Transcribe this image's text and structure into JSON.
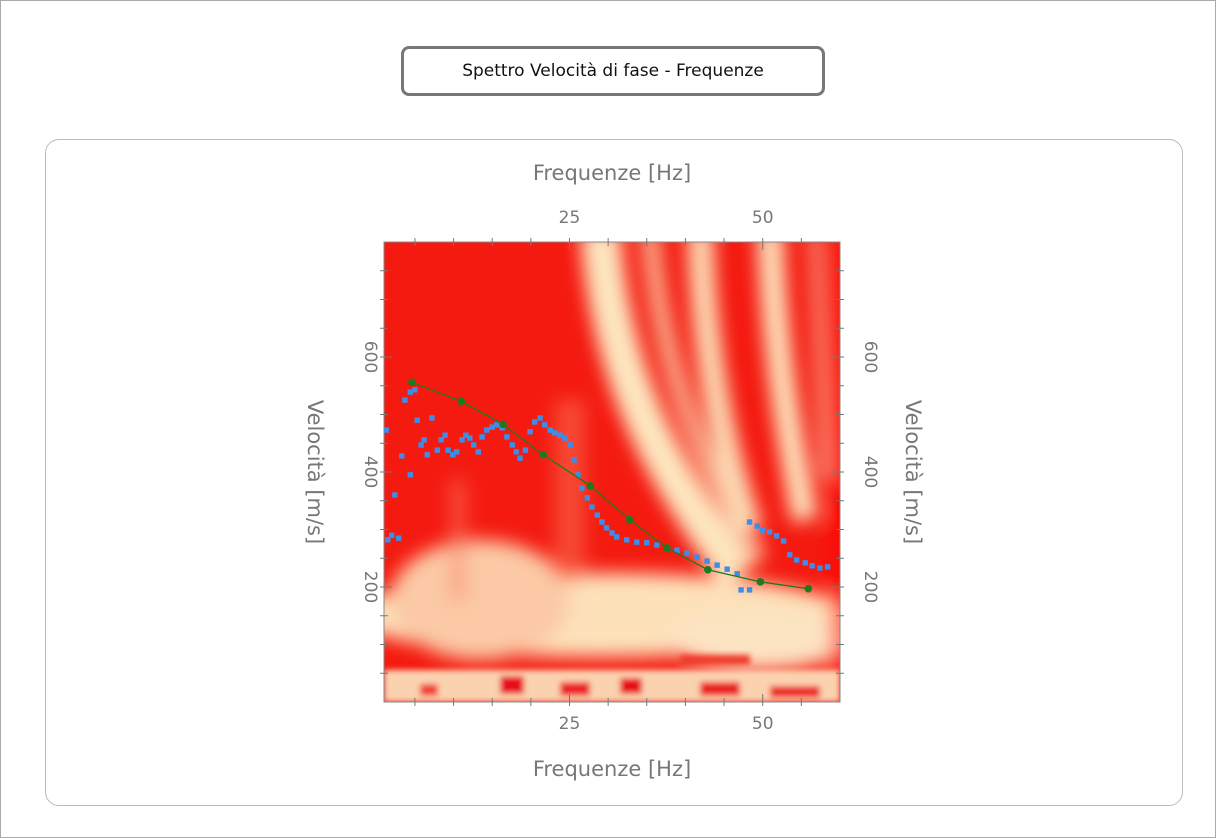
{
  "button": {
    "label": "Spettro Velocità di fase - Frequenze"
  },
  "chart_data": {
    "type": "scatter",
    "xlabel": "Frequenze [Hz]",
    "ylabel": "Velocità [m/s]",
    "xlim": [
      1,
      60
    ],
    "ylim": [
      0,
      800
    ],
    "xticks": [
      25,
      50
    ],
    "yticks": [
      200,
      400,
      600
    ],
    "xminorticks": [
      5,
      10,
      15,
      20,
      30,
      35,
      40,
      45,
      55
    ],
    "yminorticks": [
      50,
      100,
      150,
      250,
      300,
      350,
      450,
      500,
      550,
      650,
      700,
      750
    ],
    "series": [
      {
        "color": "#3d8ee8",
        "marker": "square",
        "x": [
          1.3,
          1.5,
          2,
          2.9,
          2.4,
          3.3,
          3.7,
          4.4,
          5,
          4.4,
          5.3,
          5.8,
          6.2,
          6.6,
          7.2,
          7.9,
          8.4,
          8.9,
          9.3,
          9.9,
          10.4,
          11.1,
          11.6,
          12.1,
          12.6,
          13.2,
          13.7,
          14.3,
          15,
          15.6,
          16.3,
          16.9,
          17.6,
          18.1,
          18.6,
          19.3,
          19.9,
          20.5,
          21.2,
          21.8,
          22.5,
          23.1,
          23.8,
          24.4,
          25.1,
          25.6,
          26.1,
          26.6,
          27.3,
          27.9,
          28.6,
          29.2,
          29.8,
          30.5,
          31.1,
          32.4,
          33.7,
          35,
          36.3,
          37.6,
          38.9,
          40.2,
          41.5,
          42.8,
          44.1,
          45.4,
          46.7,
          47.2,
          48.3,
          48.3,
          49.3,
          50,
          50.9,
          51.8,
          52.7,
          53.5,
          54.4,
          55.5,
          56.4,
          57.4,
          58.4
        ],
        "values": [
          473,
          282,
          290,
          285,
          360,
          428,
          525,
          539,
          543,
          395,
          490,
          447,
          456,
          430,
          494,
          438,
          456,
          464,
          438,
          430,
          435,
          456,
          464,
          459,
          447,
          435,
          461,
          473,
          478,
          482,
          477,
          461,
          447,
          435,
          424,
          438,
          470,
          487,
          494,
          482,
          473,
          468,
          464,
          459,
          447,
          421,
          395,
          372,
          355,
          339,
          325,
          313,
          303,
          294,
          287,
          282,
          278,
          277,
          273,
          268,
          264,
          259,
          252,
          245,
          238,
          231,
          223,
          195,
          195,
          313,
          306,
          299,
          296,
          289,
          280,
          256,
          247,
          242,
          237,
          233,
          235
        ]
      },
      {
        "color": "#1e7a1e",
        "marker": "circle",
        "line": true,
        "x": [
          4.6,
          11,
          16.4,
          21.6,
          27.7,
          32.8,
          37.6,
          42.9,
          49.7,
          55.9
        ],
        "values": [
          556,
          523,
          483,
          430,
          376,
          317,
          268,
          230,
          209,
          197
        ]
      }
    ]
  }
}
